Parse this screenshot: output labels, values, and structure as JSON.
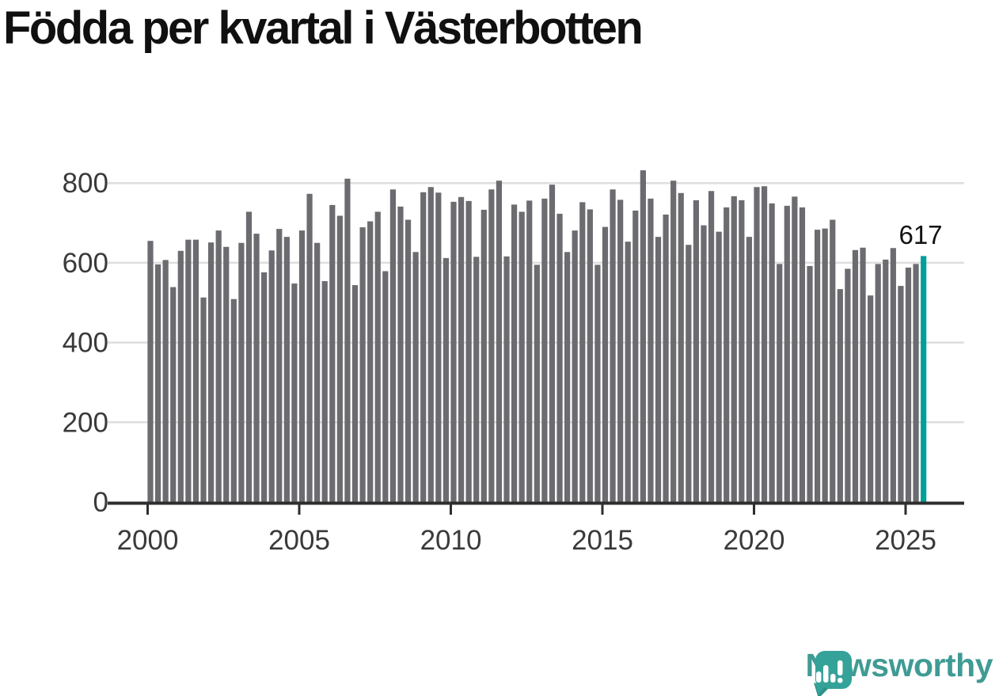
{
  "title": "Födda per kvartal i Västerbotten",
  "colors": {
    "bar": "#6b6b70",
    "highlight": "#00a099",
    "gridline": "#dedede",
    "axis": "#2e2e2e",
    "tick_text": "#3a3a3a",
    "title_text": "#101010",
    "brand_teal": "#35a299",
    "brand_teal_dark": "#2e9189",
    "brand_text": "#3f9b94"
  },
  "branding": {
    "name": "Newsworthy"
  },
  "chart_data": {
    "type": "bar",
    "title": "Födda per kvartal i Västerbotten",
    "x_start": "2000Q1",
    "x_end": "2025Q3",
    "frequency": "quarterly",
    "ylim": [
      0,
      850
    ],
    "grid": "horizontal",
    "highlight_last": true,
    "last_label": "617",
    "y_ticks": [
      {
        "value": 0,
        "label": "0"
      },
      {
        "value": 200,
        "label": "200"
      },
      {
        "value": 400,
        "label": "400"
      },
      {
        "value": 600,
        "label": "600"
      },
      {
        "value": 800,
        "label": "800"
      }
    ],
    "x_ticks": [
      {
        "year": 2000,
        "label": "2000"
      },
      {
        "year": 2005,
        "label": "2005"
      },
      {
        "year": 2010,
        "label": "2010"
      },
      {
        "year": 2015,
        "label": "2015"
      },
      {
        "year": 2020,
        "label": "2020"
      },
      {
        "year": 2025,
        "label": "2025"
      }
    ],
    "values": [
      655,
      596,
      607,
      539,
      630,
      658,
      658,
      513,
      651,
      681,
      640,
      509,
      650,
      728,
      673,
      576,
      631,
      685,
      665,
      548,
      681,
      773,
      650,
      554,
      745,
      718,
      811,
      544,
      689,
      704,
      728,
      579,
      784,
      741,
      708,
      627,
      777,
      790,
      776,
      612,
      753,
      765,
      755,
      615,
      733,
      784,
      806,
      616,
      746,
      728,
      756,
      595,
      761,
      796,
      723,
      627,
      681,
      752,
      734,
      595,
      690,
      784,
      758,
      653,
      731,
      832,
      761,
      665,
      721,
      806,
      775,
      645,
      757,
      694,
      780,
      678,
      739,
      767,
      757,
      665,
      790,
      792,
      749,
      597,
      743,
      766,
      739,
      592,
      683,
      686,
      708,
      534,
      585,
      632,
      638,
      518,
      597,
      608,
      637,
      542,
      588,
      597,
      617
    ]
  }
}
